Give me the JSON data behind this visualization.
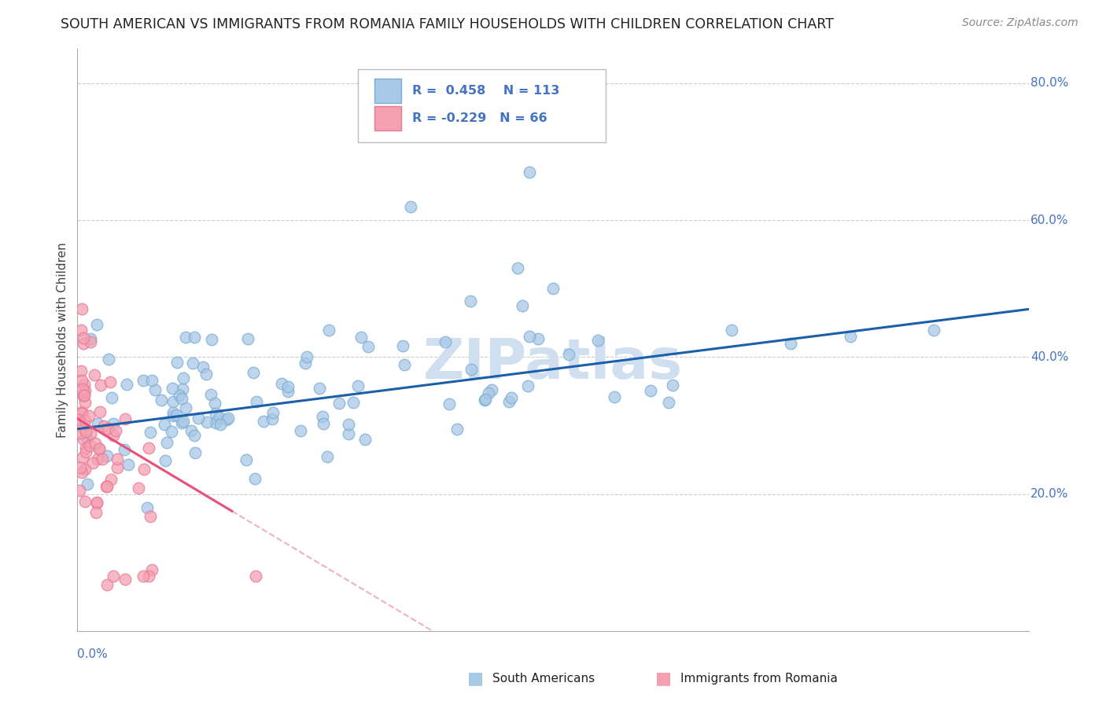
{
  "title": "SOUTH AMERICAN VS IMMIGRANTS FROM ROMANIA FAMILY HOUSEHOLDS WITH CHILDREN CORRELATION CHART",
  "source": "Source: ZipAtlas.com",
  "ylabel": "Family Households with Children",
  "xlim": [
    0.0,
    0.8
  ],
  "ylim": [
    0.0,
    0.85
  ],
  "blue_R": 0.458,
  "blue_N": 113,
  "pink_R": -0.229,
  "pink_N": 66,
  "blue_color": "#a8c8e8",
  "pink_color": "#f4a0b0",
  "blue_edge_color": "#7aaed0",
  "pink_edge_color": "#e87898",
  "blue_line_color": "#1a5fa8",
  "pink_line_color": "#e8507a",
  "pink_dash_color": "#f0b0c0",
  "axis_label_color": "#4472c4",
  "title_color": "#222222",
  "source_color": "#888888",
  "watermark_color": "#d0dff0",
  "grid_color": "#cccccc",
  "background_color": "#ffffff",
  "legend_border_color": "#bbbbbb",
  "ylabel_color": "#444444"
}
